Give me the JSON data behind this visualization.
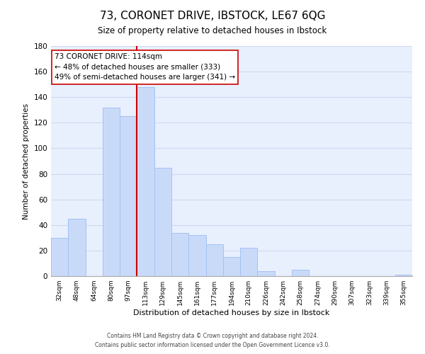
{
  "title": "73, CORONET DRIVE, IBSTOCK, LE67 6QG",
  "subtitle": "Size of property relative to detached houses in Ibstock",
  "xlabel": "Distribution of detached houses by size in Ibstock",
  "ylabel": "Number of detached properties",
  "bar_labels": [
    "32sqm",
    "48sqm",
    "64sqm",
    "80sqm",
    "97sqm",
    "113sqm",
    "129sqm",
    "145sqm",
    "161sqm",
    "177sqm",
    "194sqm",
    "210sqm",
    "226sqm",
    "242sqm",
    "258sqm",
    "274sqm",
    "290sqm",
    "307sqm",
    "323sqm",
    "339sqm",
    "355sqm"
  ],
  "bar_heights": [
    30,
    45,
    0,
    132,
    125,
    148,
    85,
    34,
    32,
    25,
    15,
    22,
    4,
    0,
    5,
    0,
    0,
    0,
    0,
    0,
    1
  ],
  "bar_color": "#c9daf8",
  "bar_edge_color": "#a4c2f4",
  "vline_idx": 5,
  "vline_color": "#cc0000",
  "annotation_line1": "73 CORONET DRIVE: 114sqm",
  "annotation_line2": "← 48% of detached houses are smaller (333)",
  "annotation_line3": "49% of semi-detached houses are larger (341) →",
  "annotation_box_edge": "#cc0000",
  "ylim": [
    0,
    180
  ],
  "yticks": [
    0,
    20,
    40,
    60,
    80,
    100,
    120,
    140,
    160,
    180
  ],
  "footer1": "Contains HM Land Registry data © Crown copyright and database right 2024.",
  "footer2": "Contains public sector information licensed under the Open Government Licence v3.0.",
  "grid_color": "#d0d8f0",
  "bg_color": "#e8f0fe"
}
